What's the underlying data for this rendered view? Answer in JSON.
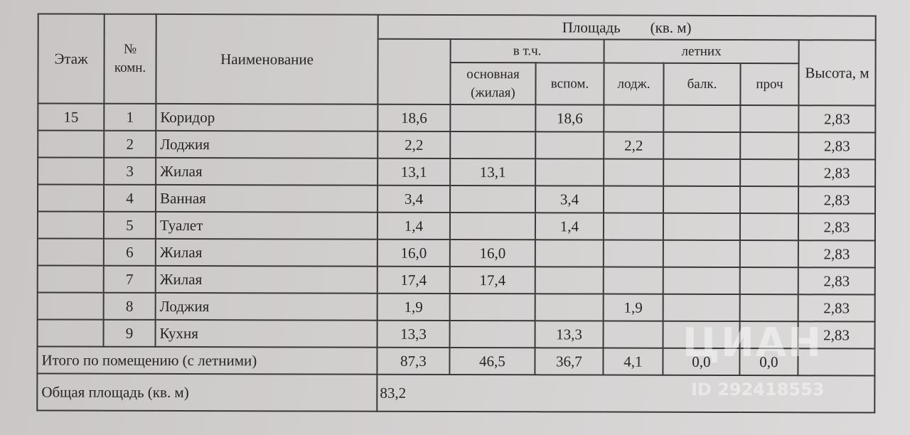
{
  "header": {
    "floor": "Этаж",
    "room_no": "№\nкомн.",
    "name": "Наименование",
    "area": "Площадь        (кв. м)",
    "incl": "в т.ч.",
    "summer": "летних",
    "main": "основная (жилая)",
    "aux": "вспом.",
    "loggia": "лодж.",
    "balcony": "балк.",
    "other": "проч",
    "height": "Высота, м"
  },
  "rows": [
    {
      "floor": "15",
      "no": "1",
      "name": "Коридор",
      "total": "18,6",
      "main": "",
      "aux": "18,6",
      "loggia": "",
      "balcony": "",
      "other": "",
      "height": "2,83"
    },
    {
      "floor": "",
      "no": "2",
      "name": "Лоджия",
      "total": "2,2",
      "main": "",
      "aux": "",
      "loggia": "2,2",
      "balcony": "",
      "other": "",
      "height": "2,83"
    },
    {
      "floor": "",
      "no": "3",
      "name": "Жилая",
      "total": "13,1",
      "main": "13,1",
      "aux": "",
      "loggia": "",
      "balcony": "",
      "other": "",
      "height": "2,83"
    },
    {
      "floor": "",
      "no": "4",
      "name": "Ванная",
      "total": "3,4",
      "main": "",
      "aux": "3,4",
      "loggia": "",
      "balcony": "",
      "other": "",
      "height": "2,83"
    },
    {
      "floor": "",
      "no": "5",
      "name": "Туалет",
      "total": "1,4",
      "main": "",
      "aux": "1,4",
      "loggia": "",
      "balcony": "",
      "other": "",
      "height": "2,83"
    },
    {
      "floor": "",
      "no": "6",
      "name": "Жилая",
      "total": "16,0",
      "main": "16,0",
      "aux": "",
      "loggia": "",
      "balcony": "",
      "other": "",
      "height": "2,83"
    },
    {
      "floor": "",
      "no": "7",
      "name": "Жилая",
      "total": "17,4",
      "main": "17,4",
      "aux": "",
      "loggia": "",
      "balcony": "",
      "other": "",
      "height": "2,83"
    },
    {
      "floor": "",
      "no": "8",
      "name": "Лоджия",
      "total": "1,9",
      "main": "",
      "aux": "",
      "loggia": "1,9",
      "balcony": "",
      "other": "",
      "height": "2,83"
    },
    {
      "floor": "",
      "no": "9",
      "name": "Кухня",
      "total": "13,3",
      "main": "",
      "aux": "13,3",
      "loggia": "",
      "balcony": "",
      "other": "",
      "height": "2,83"
    }
  ],
  "totals": {
    "label": "Итого по помещению (с летними)",
    "total": "87,3",
    "main": "46,5",
    "aux": "36,7",
    "loggia": "4,1",
    "balcony": "0,0",
    "other": "0,0"
  },
  "general": {
    "label": "Общая площадь (кв. м)",
    "value": "83,2"
  },
  "watermark": {
    "logo": "ЦИАН",
    "id": "ID 292418553"
  }
}
